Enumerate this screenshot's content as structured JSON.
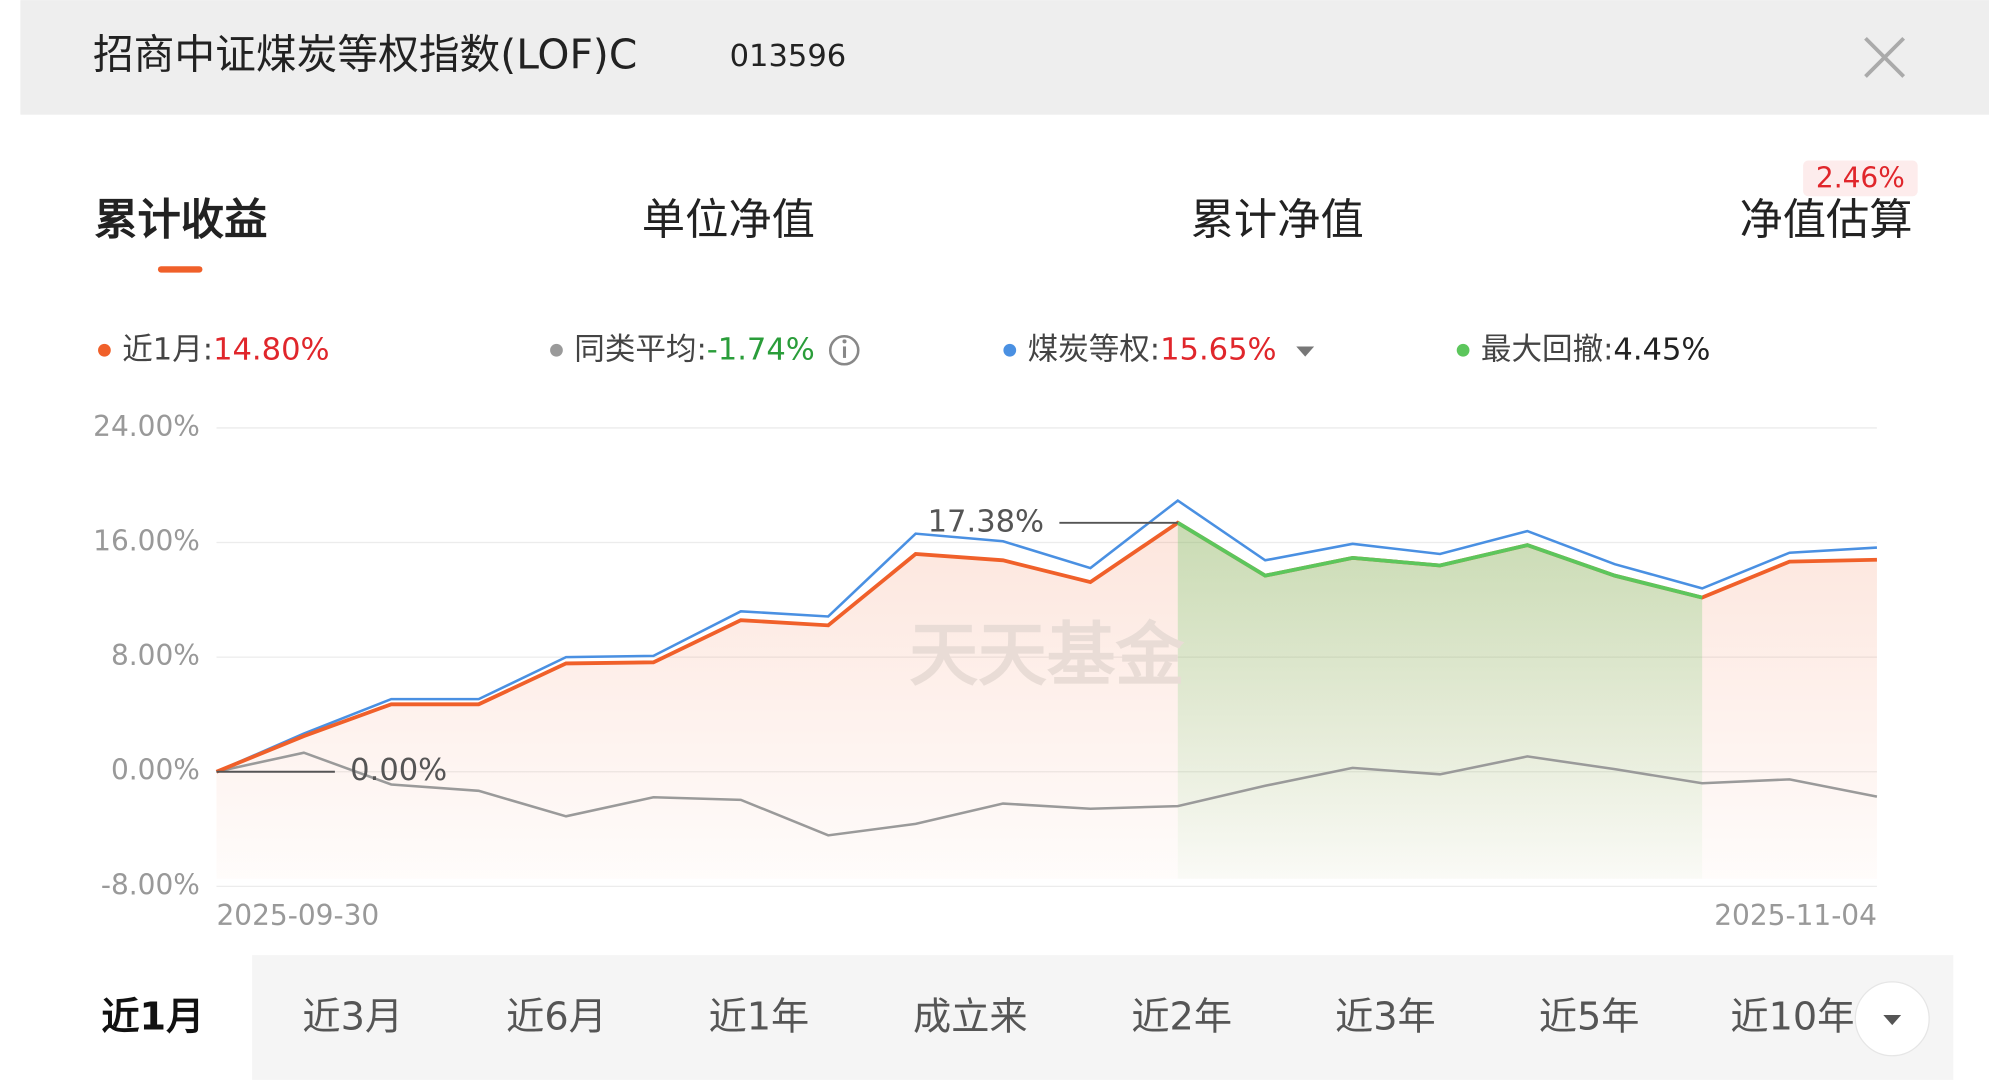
{
  "header": {
    "title": "招商中证煤炭等权指数(LOF)C",
    "code": "013596"
  },
  "tabs": [
    "累计收益",
    "单位净值",
    "累计净值",
    "净值估算"
  ],
  "estimate_badge": "2.46%",
  "chart_data": {
    "type": "line",
    "categories": [
      "2025-09-30",
      null,
      null,
      null,
      null,
      null,
      null,
      null,
      null,
      null,
      null,
      null,
      null,
      null,
      null,
      null,
      null,
      null,
      null,
      "2025-11-04"
    ],
    "series": [
      {
        "name": "近1月:",
        "legend_value": "14.80%",
        "color": "#f0602a",
        "values": [
          0,
          2.49,
          4.71,
          4.71,
          7.56,
          7.64,
          10.58,
          10.22,
          15.2,
          14.76,
          13.24,
          17.38,
          13.69,
          14.93,
          14.4,
          15.82,
          13.69,
          12.16,
          14.67,
          14.8
        ]
      },
      {
        "name": "同类平均:",
        "legend_value": "-1.74%",
        "color": "#9a9a9a",
        "values": [
          0,
          1.33,
          -0.89,
          -1.33,
          -3.11,
          -1.78,
          -1.96,
          -4.44,
          -3.64,
          -2.22,
          -2.58,
          -2.4,
          -0.98,
          0.27,
          -0.18,
          1.07,
          0.18,
          -0.8,
          -0.53,
          -1.74
        ]
      },
      {
        "name": "煤炭等权:",
        "legend_value": "15.65%",
        "color": "#4a90e2",
        "values": [
          0,
          2.67,
          5.07,
          5.07,
          8.0,
          8.09,
          11.2,
          10.84,
          16.62,
          16.09,
          14.22,
          18.93,
          14.76,
          15.91,
          15.2,
          16.8,
          14.49,
          12.8,
          15.29,
          15.65
        ]
      }
    ],
    "drawdown": {
      "name": "最大回撤:",
      "value_label": "4.45%",
      "color": "#5cc65c"
    },
    "annotations": [
      "17.38%",
      "0.00%"
    ],
    "watermark": "天天基金",
    "ylim": [
      -8,
      24
    ],
    "yticks": [
      {
        "value": -8,
        "label": "-8.00%"
      },
      {
        "value": 0,
        "label": "0.00%"
      },
      {
        "value": 8,
        "label": "8.00%"
      },
      {
        "value": 16,
        "label": "16.00%"
      },
      {
        "value": 24,
        "label": "24.00%"
      }
    ],
    "grid": true
  },
  "periods": [
    "近1月",
    "近3月",
    "近6月",
    "近1年",
    "成立来",
    "近2年",
    "近3年",
    "近5年",
    "近10年"
  ]
}
